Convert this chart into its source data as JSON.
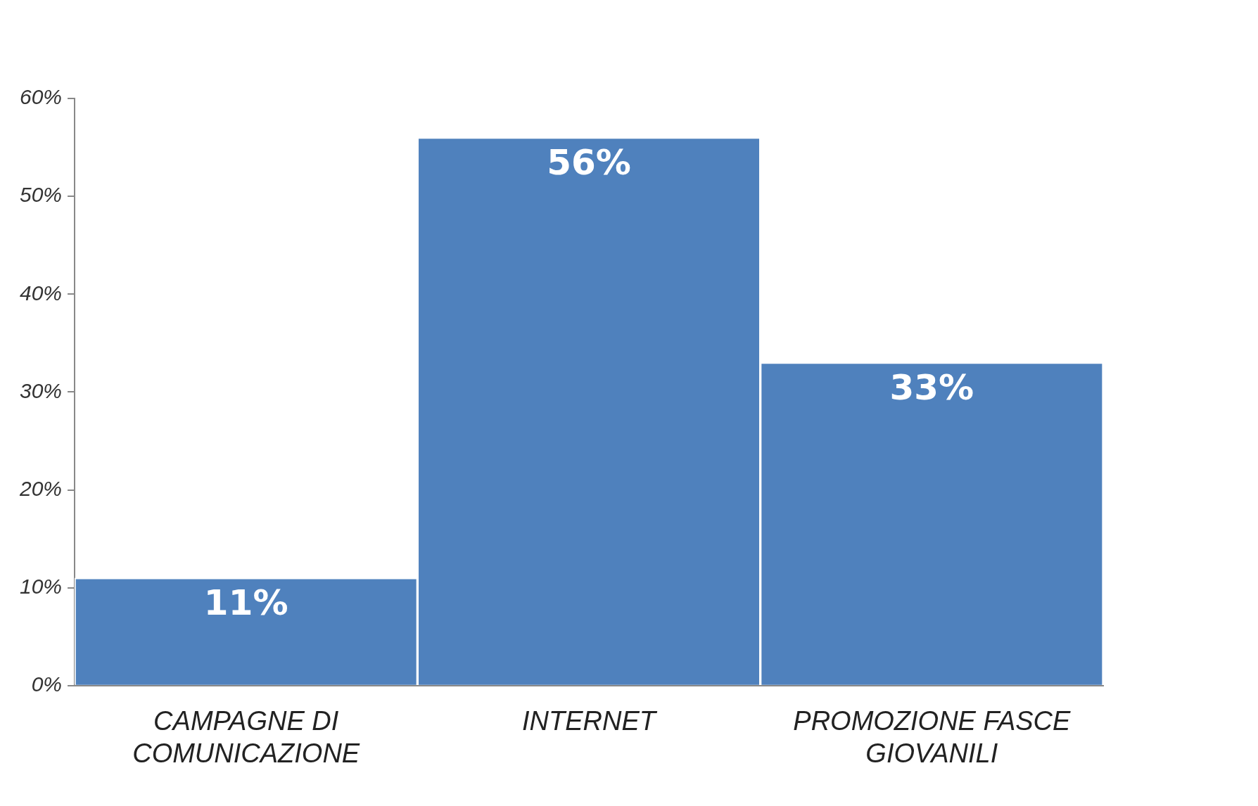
{
  "chart_data": {
    "type": "bar",
    "categories": [
      "CAMPAGNE DI COMUNICAZIONE",
      "INTERNET",
      "PROMOZIONE FASCE GIOVANILI"
    ],
    "values": [
      11,
      56,
      33
    ],
    "value_labels": [
      "11%",
      "56%",
      "33%"
    ],
    "color": "#4f81bd",
    "ylim": [
      0,
      60
    ],
    "yticks": [
      {
        "value": 0,
        "label": "0%"
      },
      {
        "value": 10,
        "label": "10%"
      },
      {
        "value": 20,
        "label": "20%"
      },
      {
        "value": 30,
        "label": "30%"
      },
      {
        "value": 40,
        "label": "40%"
      },
      {
        "value": 50,
        "label": "50%"
      },
      {
        "value": 60,
        "label": "60%"
      }
    ],
    "legend": false
  }
}
